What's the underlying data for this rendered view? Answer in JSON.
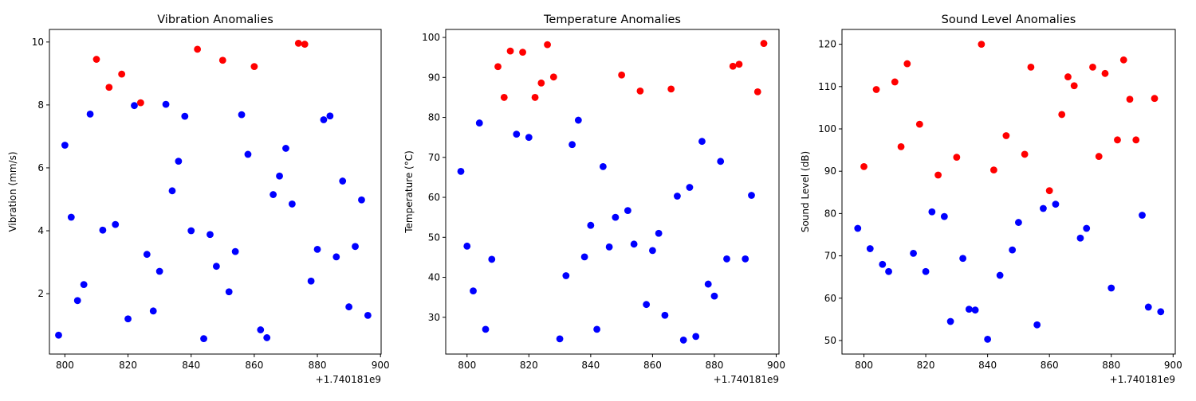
{
  "chart_data": [
    {
      "type": "scatter",
      "title": "Vibration Anomalies",
      "ylabel": "Vibration (mm/s)",
      "offset_label": "+1.740181e9",
      "xlim": [
        795.1,
        900.2
      ],
      "ylim": [
        0.08,
        10.4
      ],
      "xticks": [
        800,
        820,
        840,
        860,
        880,
        900
      ],
      "yticks": [
        2,
        4,
        6,
        8,
        10
      ],
      "colors": {
        "normal": "#0000ff",
        "anomaly": "#ff0000"
      },
      "points": [
        {
          "x": 798,
          "y": 0.68,
          "c": "normal"
        },
        {
          "x": 800,
          "y": 6.72,
          "c": "normal"
        },
        {
          "x": 802,
          "y": 4.43,
          "c": "normal"
        },
        {
          "x": 804,
          "y": 1.78,
          "c": "normal"
        },
        {
          "x": 806,
          "y": 2.29,
          "c": "normal"
        },
        {
          "x": 808,
          "y": 7.71,
          "c": "normal"
        },
        {
          "x": 810,
          "y": 9.45,
          "c": "anomaly"
        },
        {
          "x": 812,
          "y": 4.02,
          "c": "normal"
        },
        {
          "x": 814,
          "y": 8.56,
          "c": "anomaly"
        },
        {
          "x": 816,
          "y": 4.2,
          "c": "normal"
        },
        {
          "x": 818,
          "y": 8.98,
          "c": "anomaly"
        },
        {
          "x": 820,
          "y": 1.2,
          "c": "normal"
        },
        {
          "x": 822,
          "y": 7.98,
          "c": "normal"
        },
        {
          "x": 824,
          "y": 8.07,
          "c": "anomaly"
        },
        {
          "x": 826,
          "y": 3.25,
          "c": "normal"
        },
        {
          "x": 828,
          "y": 1.45,
          "c": "normal"
        },
        {
          "x": 830,
          "y": 2.71,
          "c": "normal"
        },
        {
          "x": 832,
          "y": 8.02,
          "c": "normal"
        },
        {
          "x": 834,
          "y": 5.27,
          "c": "normal"
        },
        {
          "x": 836,
          "y": 6.21,
          "c": "normal"
        },
        {
          "x": 838,
          "y": 7.64,
          "c": "normal"
        },
        {
          "x": 840,
          "y": 4.0,
          "c": "normal"
        },
        {
          "x": 842,
          "y": 9.77,
          "c": "anomaly"
        },
        {
          "x": 844,
          "y": 0.57,
          "c": "normal"
        },
        {
          "x": 846,
          "y": 3.88,
          "c": "normal"
        },
        {
          "x": 848,
          "y": 2.87,
          "c": "normal"
        },
        {
          "x": 850,
          "y": 9.42,
          "c": "anomaly"
        },
        {
          "x": 852,
          "y": 2.06,
          "c": "normal"
        },
        {
          "x": 854,
          "y": 3.34,
          "c": "normal"
        },
        {
          "x": 856,
          "y": 7.69,
          "c": "normal"
        },
        {
          "x": 858,
          "y": 6.43,
          "c": "normal"
        },
        {
          "x": 860,
          "y": 9.22,
          "c": "anomaly"
        },
        {
          "x": 862,
          "y": 0.85,
          "c": "normal"
        },
        {
          "x": 864,
          "y": 0.6,
          "c": "normal"
        },
        {
          "x": 866,
          "y": 5.15,
          "c": "normal"
        },
        {
          "x": 868,
          "y": 5.74,
          "c": "normal"
        },
        {
          "x": 870,
          "y": 6.62,
          "c": "normal"
        },
        {
          "x": 872,
          "y": 4.85,
          "c": "normal"
        },
        {
          "x": 874,
          "y": 9.96,
          "c": "anomaly"
        },
        {
          "x": 876,
          "y": 9.93,
          "c": "anomaly"
        },
        {
          "x": 878,
          "y": 2.4,
          "c": "normal"
        },
        {
          "x": 880,
          "y": 3.41,
          "c": "normal"
        },
        {
          "x": 882,
          "y": 7.53,
          "c": "normal"
        },
        {
          "x": 884,
          "y": 7.65,
          "c": "normal"
        },
        {
          "x": 886,
          "y": 3.17,
          "c": "normal"
        },
        {
          "x": 888,
          "y": 5.58,
          "c": "normal"
        },
        {
          "x": 890,
          "y": 1.58,
          "c": "normal"
        },
        {
          "x": 892,
          "y": 3.5,
          "c": "normal"
        },
        {
          "x": 894,
          "y": 4.98,
          "c": "normal"
        },
        {
          "x": 896,
          "y": 1.31,
          "c": "normal"
        }
      ]
    },
    {
      "type": "scatter",
      "title": "Temperature Anomalies",
      "ylabel": "Temperature (°C)",
      "offset_label": "+1.740181e9",
      "xlim": [
        793.1,
        900.9
      ],
      "ylim": [
        20.8,
        102.0
      ],
      "xticks": [
        800,
        820,
        840,
        860,
        880,
        900
      ],
      "yticks": [
        30,
        40,
        50,
        60,
        70,
        80,
        90,
        100
      ],
      "colors": {
        "normal": "#0000ff",
        "anomaly": "#ff0000"
      },
      "points": [
        {
          "x": 798,
          "y": 66.5,
          "c": "normal"
        },
        {
          "x": 800,
          "y": 47.8,
          "c": "normal"
        },
        {
          "x": 802,
          "y": 36.6,
          "c": "normal"
        },
        {
          "x": 804,
          "y": 78.6,
          "c": "normal"
        },
        {
          "x": 806,
          "y": 27.0,
          "c": "normal"
        },
        {
          "x": 808,
          "y": 44.5,
          "c": "normal"
        },
        {
          "x": 810,
          "y": 92.7,
          "c": "anomaly"
        },
        {
          "x": 812,
          "y": 85.0,
          "c": "anomaly"
        },
        {
          "x": 814,
          "y": 96.6,
          "c": "anomaly"
        },
        {
          "x": 816,
          "y": 75.8,
          "c": "normal"
        },
        {
          "x": 818,
          "y": 96.3,
          "c": "anomaly"
        },
        {
          "x": 820,
          "y": 75.0,
          "c": "normal"
        },
        {
          "x": 822,
          "y": 85.0,
          "c": "anomaly"
        },
        {
          "x": 824,
          "y": 88.6,
          "c": "anomaly"
        },
        {
          "x": 826,
          "y": 98.2,
          "c": "anomaly"
        },
        {
          "x": 828,
          "y": 90.1,
          "c": "anomaly"
        },
        {
          "x": 830,
          "y": 24.6,
          "c": "normal"
        },
        {
          "x": 832,
          "y": 40.4,
          "c": "normal"
        },
        {
          "x": 834,
          "y": 73.2,
          "c": "normal"
        },
        {
          "x": 836,
          "y": 79.3,
          "c": "normal"
        },
        {
          "x": 838,
          "y": 45.1,
          "c": "normal"
        },
        {
          "x": 840,
          "y": 53.0,
          "c": "normal"
        },
        {
          "x": 842,
          "y": 27.0,
          "c": "normal"
        },
        {
          "x": 844,
          "y": 67.7,
          "c": "normal"
        },
        {
          "x": 846,
          "y": 47.6,
          "c": "normal"
        },
        {
          "x": 848,
          "y": 55.0,
          "c": "normal"
        },
        {
          "x": 850,
          "y": 90.6,
          "c": "anomaly"
        },
        {
          "x": 852,
          "y": 56.7,
          "c": "normal"
        },
        {
          "x": 854,
          "y": 48.3,
          "c": "normal"
        },
        {
          "x": 856,
          "y": 86.6,
          "c": "anomaly"
        },
        {
          "x": 858,
          "y": 33.2,
          "c": "normal"
        },
        {
          "x": 860,
          "y": 46.7,
          "c": "normal"
        },
        {
          "x": 862,
          "y": 51.0,
          "c": "normal"
        },
        {
          "x": 864,
          "y": 30.5,
          "c": "normal"
        },
        {
          "x": 866,
          "y": 87.1,
          "c": "anomaly"
        },
        {
          "x": 868,
          "y": 60.3,
          "c": "normal"
        },
        {
          "x": 870,
          "y": 24.3,
          "c": "normal"
        },
        {
          "x": 872,
          "y": 62.5,
          "c": "normal"
        },
        {
          "x": 874,
          "y": 25.2,
          "c": "normal"
        },
        {
          "x": 876,
          "y": 74.0,
          "c": "normal"
        },
        {
          "x": 878,
          "y": 38.3,
          "c": "normal"
        },
        {
          "x": 880,
          "y": 35.3,
          "c": "normal"
        },
        {
          "x": 882,
          "y": 69.0,
          "c": "normal"
        },
        {
          "x": 884,
          "y": 44.6,
          "c": "normal"
        },
        {
          "x": 886,
          "y": 92.8,
          "c": "anomaly"
        },
        {
          "x": 888,
          "y": 93.3,
          "c": "anomaly"
        },
        {
          "x": 890,
          "y": 44.6,
          "c": "normal"
        },
        {
          "x": 892,
          "y": 60.5,
          "c": "normal"
        },
        {
          "x": 894,
          "y": 86.4,
          "c": "anomaly"
        },
        {
          "x": 896,
          "y": 98.5,
          "c": "anomaly"
        }
      ]
    },
    {
      "type": "scatter",
      "title": "Sound Level Anomalies",
      "ylabel": "Sound Level (dB)",
      "offset_label": "+1.740181e9",
      "xlim": [
        792.9,
        900.7
      ],
      "ylim": [
        46.8,
        123.5
      ],
      "xticks": [
        800,
        820,
        840,
        860,
        880,
        900
      ],
      "yticks": [
        50,
        60,
        70,
        80,
        90,
        100,
        110,
        120
      ],
      "colors": {
        "normal": "#0000ff",
        "anomaly": "#ff0000"
      },
      "points": [
        {
          "x": 798,
          "y": 76.5,
          "c": "normal"
        },
        {
          "x": 800,
          "y": 91.1,
          "c": "anomaly"
        },
        {
          "x": 802,
          "y": 71.7,
          "c": "normal"
        },
        {
          "x": 804,
          "y": 109.3,
          "c": "anomaly"
        },
        {
          "x": 806,
          "y": 68.0,
          "c": "normal"
        },
        {
          "x": 808,
          "y": 66.3,
          "c": "normal"
        },
        {
          "x": 810,
          "y": 111.1,
          "c": "anomaly"
        },
        {
          "x": 812,
          "y": 95.8,
          "c": "anomaly"
        },
        {
          "x": 814,
          "y": 115.4,
          "c": "anomaly"
        },
        {
          "x": 816,
          "y": 70.6,
          "c": "normal"
        },
        {
          "x": 818,
          "y": 101.1,
          "c": "anomaly"
        },
        {
          "x": 820,
          "y": 66.3,
          "c": "normal"
        },
        {
          "x": 822,
          "y": 80.4,
          "c": "normal"
        },
        {
          "x": 824,
          "y": 89.1,
          "c": "anomaly"
        },
        {
          "x": 826,
          "y": 79.3,
          "c": "normal"
        },
        {
          "x": 828,
          "y": 54.5,
          "c": "normal"
        },
        {
          "x": 830,
          "y": 93.3,
          "c": "anomaly"
        },
        {
          "x": 832,
          "y": 69.4,
          "c": "normal"
        },
        {
          "x": 834,
          "y": 57.4,
          "c": "normal"
        },
        {
          "x": 836,
          "y": 57.2,
          "c": "normal"
        },
        {
          "x": 838,
          "y": 120.0,
          "c": "anomaly"
        },
        {
          "x": 840,
          "y": 50.3,
          "c": "normal"
        },
        {
          "x": 842,
          "y": 90.3,
          "c": "anomaly"
        },
        {
          "x": 844,
          "y": 65.4,
          "c": "normal"
        },
        {
          "x": 846,
          "y": 98.4,
          "c": "anomaly"
        },
        {
          "x": 848,
          "y": 71.4,
          "c": "normal"
        },
        {
          "x": 850,
          "y": 77.9,
          "c": "normal"
        },
        {
          "x": 852,
          "y": 94.0,
          "c": "anomaly"
        },
        {
          "x": 854,
          "y": 114.6,
          "c": "anomaly"
        },
        {
          "x": 856,
          "y": 53.7,
          "c": "normal"
        },
        {
          "x": 858,
          "y": 81.2,
          "c": "normal"
        },
        {
          "x": 860,
          "y": 85.4,
          "c": "anomaly"
        },
        {
          "x": 862,
          "y": 82.2,
          "c": "normal"
        },
        {
          "x": 864,
          "y": 103.4,
          "c": "anomaly"
        },
        {
          "x": 866,
          "y": 112.3,
          "c": "anomaly"
        },
        {
          "x": 868,
          "y": 110.2,
          "c": "anomaly"
        },
        {
          "x": 870,
          "y": 74.2,
          "c": "normal"
        },
        {
          "x": 872,
          "y": 76.5,
          "c": "normal"
        },
        {
          "x": 874,
          "y": 114.6,
          "c": "anomaly"
        },
        {
          "x": 876,
          "y": 93.5,
          "c": "anomaly"
        },
        {
          "x": 878,
          "y": 113.1,
          "c": "anomaly"
        },
        {
          "x": 880,
          "y": 62.4,
          "c": "normal"
        },
        {
          "x": 882,
          "y": 97.4,
          "c": "anomaly"
        },
        {
          "x": 884,
          "y": 116.3,
          "c": "anomaly"
        },
        {
          "x": 886,
          "y": 107.0,
          "c": "anomaly"
        },
        {
          "x": 888,
          "y": 97.4,
          "c": "anomaly"
        },
        {
          "x": 890,
          "y": 79.6,
          "c": "normal"
        },
        {
          "x": 892,
          "y": 57.9,
          "c": "normal"
        },
        {
          "x": 894,
          "y": 107.2,
          "c": "anomaly"
        },
        {
          "x": 896,
          "y": 56.8,
          "c": "normal"
        }
      ]
    }
  ]
}
